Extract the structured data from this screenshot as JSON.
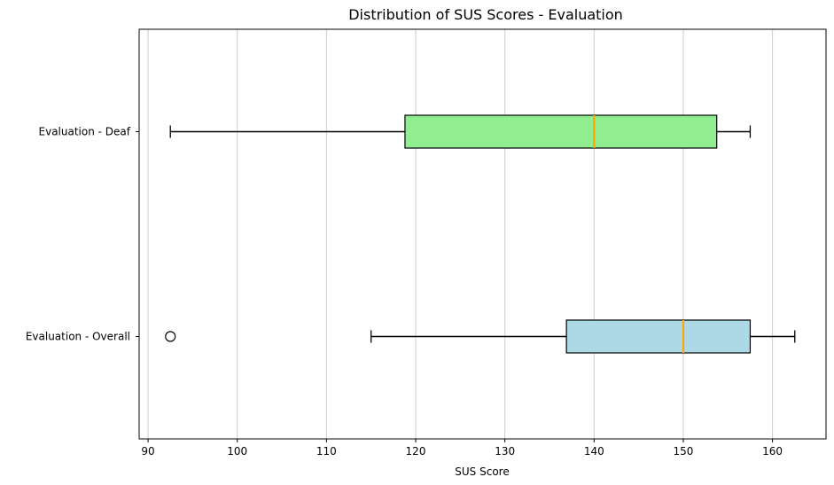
{
  "chart_data": {
    "type": "boxplot",
    "orientation": "horizontal",
    "title": "Distribution of SUS Scores - Evaluation",
    "xlabel": "SUS Score",
    "ylabel": "",
    "xlim": [
      89,
      166
    ],
    "xticks": [
      90,
      100,
      110,
      120,
      130,
      140,
      150,
      160
    ],
    "grid": "vertical",
    "series": [
      {
        "name": "Evaluation - Overall",
        "whisker_low": 115,
        "q1": 136.9,
        "median": 150,
        "q3": 157.5,
        "whisker_high": 162.5,
        "outliers": [
          92.5
        ],
        "fill": "#add8e6"
      },
      {
        "name": "Evaluation - Deaf",
        "whisker_low": 92.5,
        "q1": 118.8,
        "median": 140,
        "q3": 153.75,
        "whisker_high": 157.5,
        "outliers": [],
        "fill": "#90ee90"
      }
    ],
    "colors": {
      "median": "#ffa500",
      "grid": "#cccccc",
      "box_edge": "#000000"
    }
  }
}
